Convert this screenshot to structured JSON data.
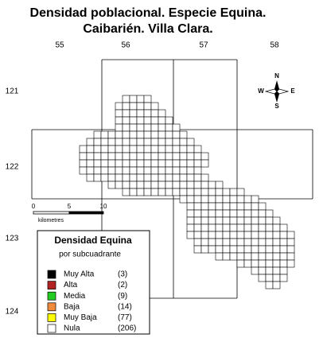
{
  "title": [
    "Densidad poblacional. Especie Equina.",
    "Caibarién. Villa Clara."
  ],
  "grid_labels": {
    "columns": [
      "55",
      "56",
      "57",
      "58"
    ],
    "rows": [
      "121",
      "122",
      "123",
      "124"
    ]
  },
  "compass": {
    "north": "N",
    "south": "S",
    "east": "E",
    "west": "W"
  },
  "scale": {
    "ticks": [
      "0",
      "5",
      "10"
    ],
    "unit": "kilometres"
  },
  "legend": {
    "title": "Densidad Equina",
    "subtitle": "por subcuadrante",
    "items": [
      {
        "label": "Muy Alta",
        "count": "(3)"
      },
      {
        "label": "Alta",
        "count": "(2)"
      },
      {
        "label": "Media",
        "count": "(9)"
      },
      {
        "label": "Baja",
        "count": "(14)"
      },
      {
        "label": "Muy Baja",
        "count": "(77)"
      },
      {
        "label": "Nula",
        "count": "(206)"
      }
    ]
  }
}
